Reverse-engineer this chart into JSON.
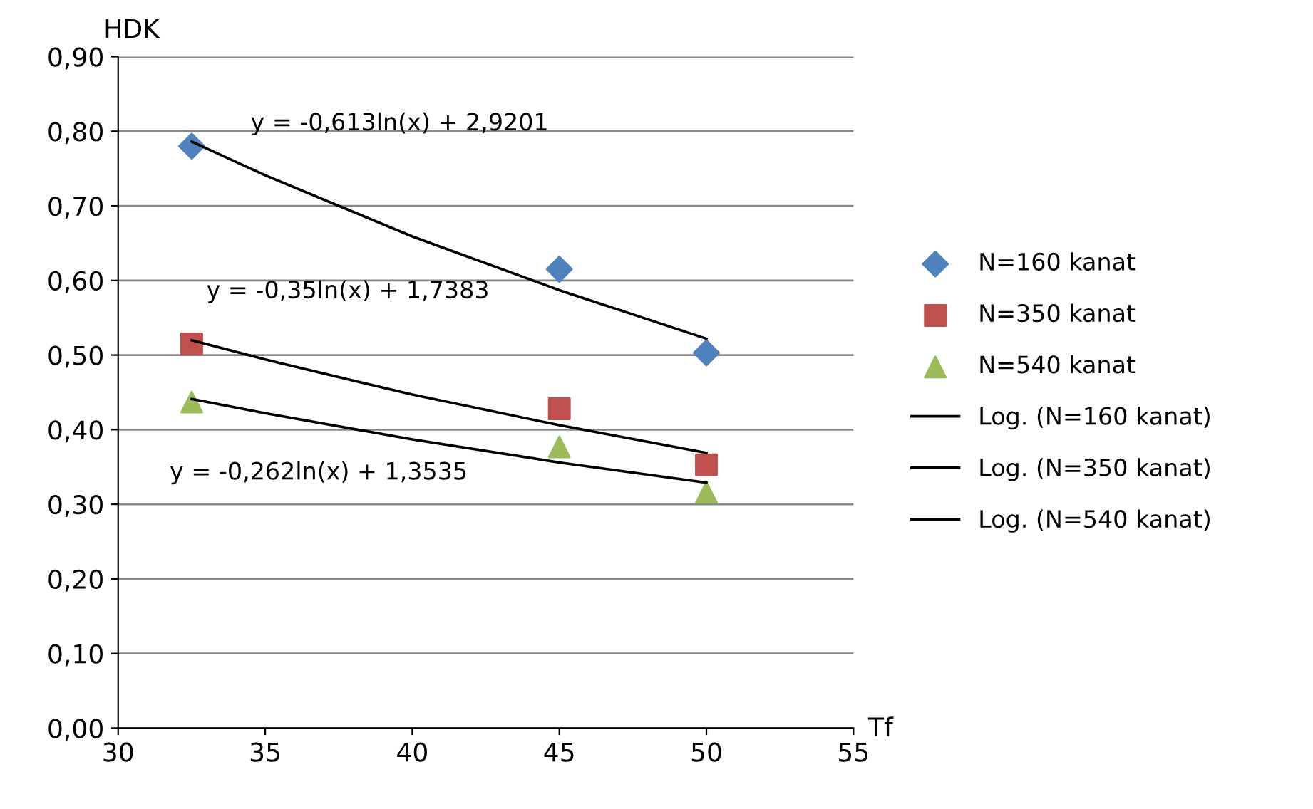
{
  "chart_data": {
    "type": "scatter",
    "xlabel": "Tf",
    "ylabel": "HDK",
    "xlim": [
      30,
      55
    ],
    "xticks": [
      30,
      35,
      40,
      45,
      50,
      55
    ],
    "ylim": [
      0,
      0.9
    ],
    "yticks": [
      {
        "value": 0,
        "label": "0,00"
      },
      {
        "value": 0.1,
        "label": "0,10"
      },
      {
        "value": 0.2,
        "label": "0,20"
      },
      {
        "value": 0.3,
        "label": "0,30"
      },
      {
        "value": 0.4,
        "label": "0,40"
      },
      {
        "value": 0.5,
        "label": "0,50"
      },
      {
        "value": 0.6,
        "label": "0,60"
      },
      {
        "value": 0.7,
        "label": "0,70"
      },
      {
        "value": 0.8,
        "label": "0,80"
      },
      {
        "value": 0.9,
        "label": "0,90"
      }
    ],
    "grid": "y",
    "legend": "right",
    "series": [
      {
        "name": "N=160 kanat",
        "marker": "diamond",
        "color": "#4f81bd",
        "x": [
          32.5,
          45,
          50
        ],
        "values": [
          0.78,
          0.615,
          0.503
        ]
      },
      {
        "name": "N=350 kanat",
        "marker": "square",
        "color": "#c0504d",
        "x": [
          32.5,
          45,
          50
        ],
        "values": [
          0.515,
          0.428,
          0.353
        ]
      },
      {
        "name": "N=540 kanat",
        "marker": "triangle",
        "color": "#9bbb59",
        "x": [
          32.5,
          45,
          50
        ],
        "values": [
          0.437,
          0.377,
          0.316
        ]
      },
      {
        "name": "Log. (N=160 kanat)",
        "type": "line",
        "marker": "none",
        "color": "#000000",
        "x": [
          32.5,
          35,
          40,
          45,
          50
        ],
        "values": [
          0.786,
          0.741,
          0.659,
          0.587,
          0.522
        ]
      },
      {
        "name": "Log. (N=350 kanat)",
        "type": "line",
        "marker": "none",
        "color": "#000000",
        "x": [
          32.5,
          35,
          40,
          45,
          50
        ],
        "values": [
          0.52,
          0.494,
          0.447,
          0.406,
          0.369
        ]
      },
      {
        "name": "Log. (N=540 kanat)",
        "type": "line",
        "marker": "none",
        "color": "#000000",
        "x": [
          32.5,
          35,
          40,
          45,
          50
        ],
        "values": [
          0.441,
          0.422,
          0.387,
          0.356,
          0.329
        ]
      }
    ],
    "annotations": [
      "y = -0,613ln(x) + 2,9201",
      "y = -0,35ln(x) + 1,7383",
      "y = -0,262ln(x) + 1,3535"
    ]
  }
}
